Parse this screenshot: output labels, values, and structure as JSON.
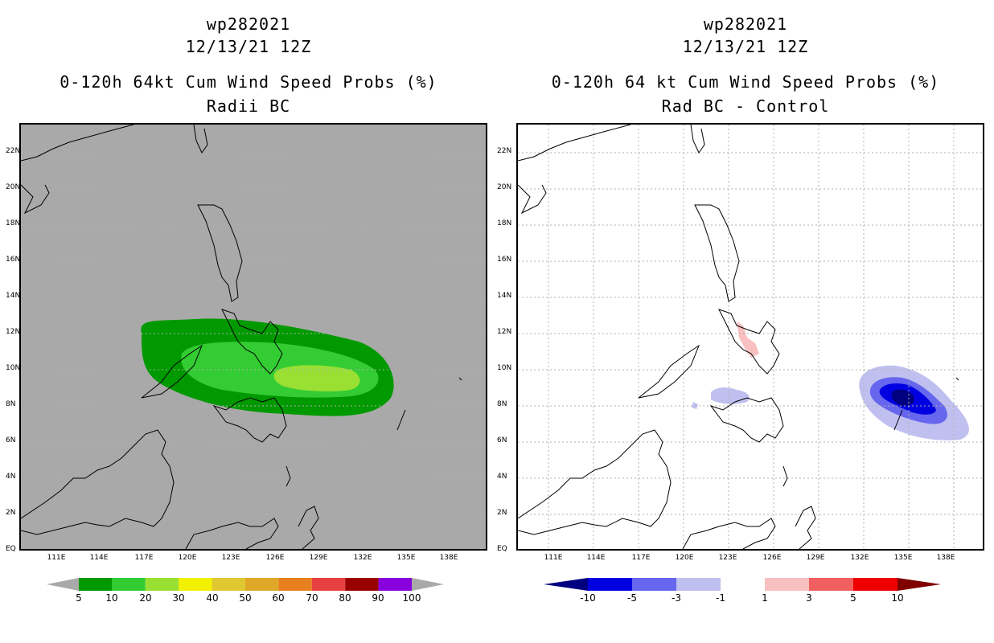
{
  "left_panel": {
    "storm_id": "wp282021",
    "datetime": "12/13/21 12Z",
    "title": "0-120h 64kt Cum Wind Speed Probs (%)",
    "subtitle": "Radii BC",
    "colorbar": {
      "labels": [
        "5",
        "10",
        "20",
        "30",
        "40",
        "50",
        "60",
        "70",
        "80",
        "90",
        "100"
      ],
      "colors": [
        "#009900",
        "#33cc33",
        "#99e033",
        "#f0f000",
        "#e0c830",
        "#e0a828",
        "#e88020",
        "#e84040",
        "#990000",
        "#8800dd"
      ],
      "end_color": "#a9a9a9"
    }
  },
  "right_panel": {
    "storm_id": "wp282021",
    "datetime": "12/13/21 12Z",
    "title": "0-120h 64 kt Cum Wind Speed Probs (%)",
    "subtitle": "Rad BC - Control",
    "colorbar": {
      "labels": [
        "-10",
        "-5",
        "-3",
        "-1",
        "1",
        "3",
        "5",
        "10"
      ],
      "colors": [
        "#0000e0",
        "#6666ee",
        "#c0c0f0",
        "#ffffff",
        "#f8c0c0",
        "#f06060",
        "#ee0000"
      ],
      "low_end_color": "#000080",
      "high_end_color": "#800000"
    }
  },
  "axes": {
    "lat_labels": [
      "22N",
      "20N",
      "18N",
      "16N",
      "14N",
      "12N",
      "10N",
      "8N",
      "6N",
      "4N",
      "2N",
      "EQ"
    ],
    "lon_labels": [
      "111E",
      "114E",
      "117E",
      "120E",
      "123E",
      "126E",
      "129E",
      "132E",
      "135E",
      "138E"
    ]
  },
  "colors": {
    "map_background_left": "#a9a9a9",
    "map_background_right": "#ffffff",
    "coastline": "#000000",
    "grid": "#b0b0b0"
  }
}
